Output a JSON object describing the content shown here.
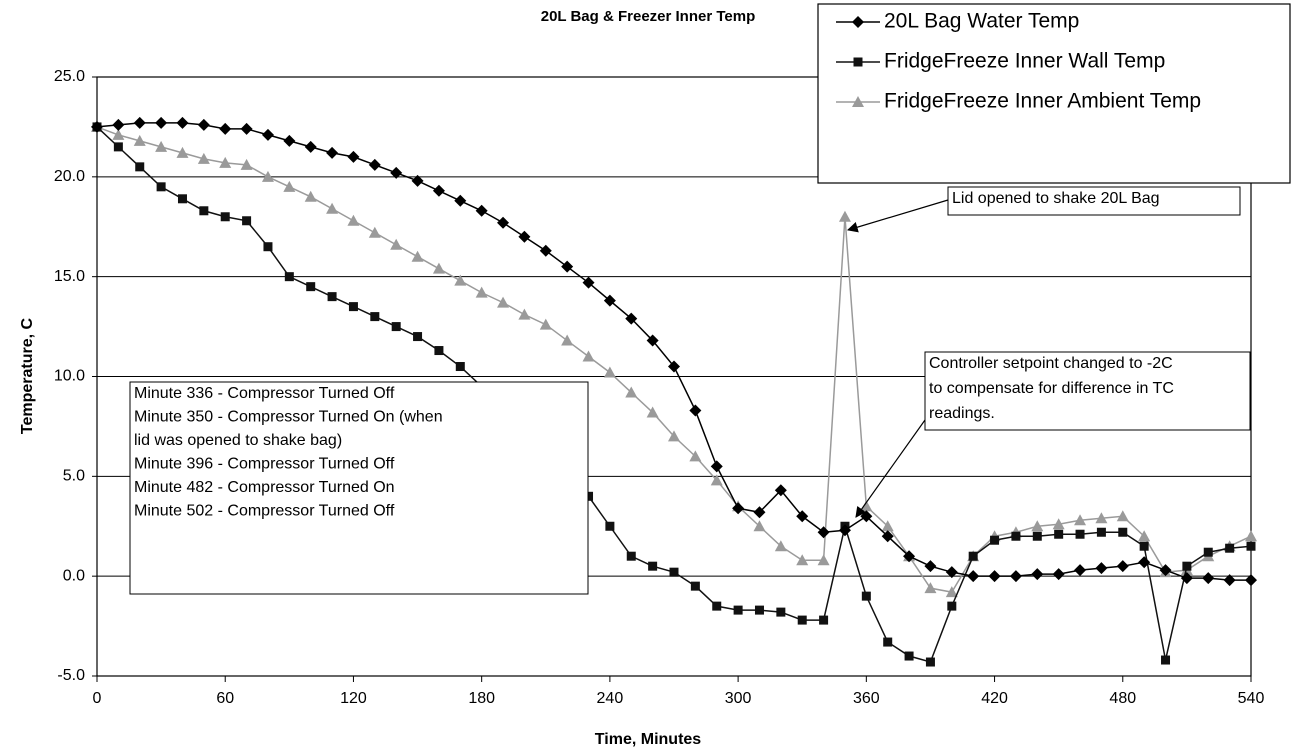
{
  "chart_data": {
    "type": "line",
    "title": "20L Bag & Freezer Inner Temp",
    "xlabel": "Time, Minutes",
    "ylabel": "Temperature, C",
    "x": [
      0,
      10,
      20,
      30,
      40,
      50,
      60,
      70,
      80,
      90,
      100,
      110,
      120,
      130,
      140,
      150,
      160,
      170,
      180,
      190,
      200,
      210,
      220,
      230,
      240,
      250,
      260,
      270,
      280,
      290,
      300,
      310,
      320,
      330,
      340,
      350,
      360,
      370,
      380,
      390,
      400,
      410,
      420,
      430,
      440,
      450,
      460,
      470,
      480,
      490,
      500,
      510,
      520,
      530,
      540
    ],
    "series": [
      {
        "name": "20L Bag Water Temp",
        "color": "#000000",
        "marker": "diamond",
        "values": [
          22.5,
          22.6,
          22.7,
          22.7,
          22.7,
          22.6,
          22.4,
          22.4,
          22.1,
          21.8,
          21.5,
          21.2,
          21.0,
          20.6,
          20.2,
          19.8,
          19.3,
          18.8,
          18.3,
          17.7,
          17.0,
          16.3,
          15.5,
          14.7,
          13.8,
          12.9,
          11.8,
          10.5,
          8.3,
          5.5,
          3.4,
          3.2,
          4.3,
          3.0,
          2.2,
          2.3,
          3.0,
          2.0,
          1.0,
          0.5,
          0.2,
          0.0,
          0.0,
          0.0,
          0.1,
          0.1,
          0.3,
          0.4,
          0.5,
          0.7,
          0.3,
          -0.1,
          -0.1,
          -0.2,
          -0.2
        ]
      },
      {
        "name": "FridgeFreeze Inner Wall Temp",
        "color": "#111111",
        "marker": "square",
        "values": [
          22.5,
          21.5,
          20.5,
          19.5,
          18.9,
          18.3,
          18.0,
          17.8,
          16.5,
          15.0,
          14.5,
          14.0,
          13.5,
          13.0,
          12.5,
          12.0,
          11.3,
          10.5,
          9.5,
          8.5,
          7.5,
          6.3,
          5.0,
          4.0,
          2.5,
          1.0,
          0.5,
          0.2,
          -0.5,
          -1.5,
          -1.7,
          -1.7,
          -1.8,
          -2.2,
          -2.2,
          2.5,
          -1.0,
          -3.3,
          -4.0,
          -4.3,
          -1.5,
          1.0,
          1.8,
          2.0,
          2.0,
          2.1,
          2.1,
          2.2,
          2.2,
          1.5,
          -4.2,
          0.5,
          1.2,
          1.4,
          1.5
        ]
      },
      {
        "name": "FridgeFreeze Inner Ambient Temp",
        "color": "#9a9a9a",
        "marker": "triangle",
        "values": [
          22.5,
          22.1,
          21.8,
          21.5,
          21.2,
          20.9,
          20.7,
          20.6,
          20.0,
          19.5,
          19.0,
          18.4,
          17.8,
          17.2,
          16.6,
          16.0,
          15.4,
          14.8,
          14.2,
          13.7,
          13.1,
          12.6,
          11.8,
          11.0,
          10.2,
          9.2,
          8.2,
          7.0,
          6.0,
          4.8,
          3.5,
          2.5,
          1.5,
          0.8,
          0.8,
          18.0,
          3.5,
          2.5,
          1.0,
          -0.6,
          -0.8,
          1.0,
          2.0,
          2.2,
          2.5,
          2.6,
          2.8,
          2.9,
          3.0,
          2.0,
          0.2,
          0.3,
          1.0,
          1.5,
          2.0
        ]
      }
    ],
    "xlim": [
      0,
      540
    ],
    "xticks": [
      0,
      60,
      120,
      180,
      240,
      300,
      360,
      420,
      480,
      540
    ],
    "ylim": [
      -5,
      25
    ],
    "yticks": [
      {
        "value": -5,
        "label": "-5.0"
      },
      {
        "value": 0,
        "label": "0.0"
      },
      {
        "value": 5,
        "label": "5.0"
      },
      {
        "value": 10,
        "label": "10.0"
      },
      {
        "value": 15,
        "label": "15.0"
      },
      {
        "value": 20,
        "label": "20.0"
      },
      {
        "value": 25,
        "label": "25.0"
      }
    ],
    "grid": true,
    "legend_position": "upper right",
    "annotations": [
      {
        "lines": [
          "Lid opened to shake 20L Bag"
        ]
      },
      {
        "lines": [
          "Controller setpoint changed to -2C",
          "to compensate for difference in TC",
          "readings."
        ]
      },
      {
        "lines": [
          "Minute 336 - Compressor Turned Off",
          "Minute 350 - Compressor Turned On (when",
          "lid was opened to shake bag)",
          "Minute 396 - Compressor Turned Off",
          "Minute 482 - Compressor Turned On",
          "Minute 502 - Compressor Turned Off"
        ]
      }
    ]
  }
}
